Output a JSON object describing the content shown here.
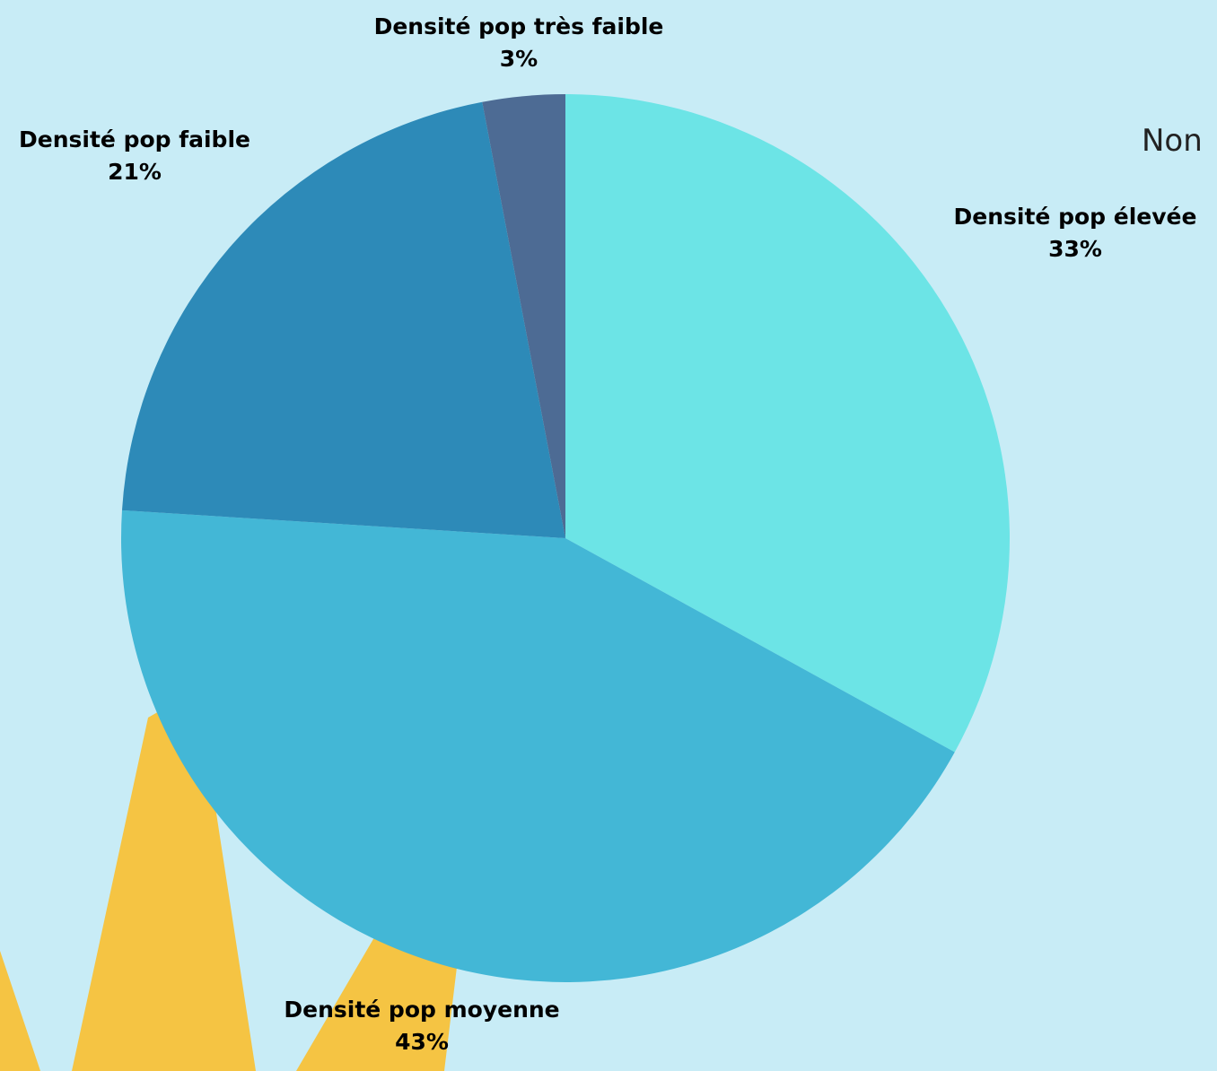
{
  "chart_data": {
    "type": "pie",
    "title": "Non",
    "categories": [
      "Densité pop élevée",
      "Densité pop moyenne",
      "Densité pop faible",
      "Densité pop très faible"
    ],
    "values": [
      33,
      43,
      21,
      3
    ],
    "value_labels": [
      "33%",
      "43%",
      "21%",
      "3%"
    ],
    "colors": [
      "#6ce4e6",
      "#43b7d6",
      "#2d8ab8",
      "#4d6b94"
    ]
  }
}
